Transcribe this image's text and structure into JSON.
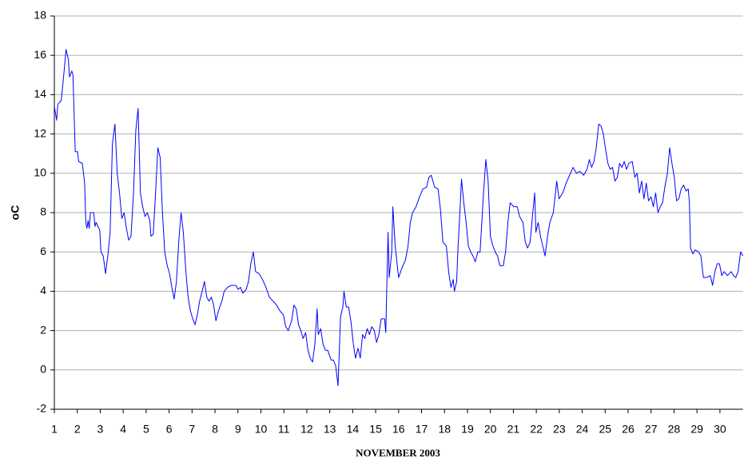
{
  "chart_data": {
    "type": "line",
    "xlabel": "NOVEMBER 2003",
    "ylabel": "oC",
    "color": "#0000ff",
    "grid": true,
    "xlim": [
      1,
      31
    ],
    "ylim": [
      -2,
      18
    ],
    "xticks": [
      1,
      2,
      3,
      4,
      5,
      6,
      7,
      8,
      9,
      10,
      11,
      12,
      13,
      14,
      15,
      16,
      17,
      18,
      19,
      20,
      21,
      22,
      23,
      24,
      25,
      26,
      27,
      28,
      29,
      30
    ],
    "yticks": [
      -2,
      0,
      2,
      4,
      6,
      8,
      10,
      12,
      14,
      16,
      18
    ],
    "x": [
      1,
      1.1,
      1.15,
      1.3,
      1.41,
      1.51,
      1.61,
      1.66,
      1.76,
      1.81,
      1.91,
      2.01,
      2.06,
      2.22,
      2.32,
      2.37,
      2.42,
      2.47,
      2.52,
      2.57,
      2.72,
      2.77,
      2.82,
      2.98,
      3.03,
      3.13,
      3.23,
      3.33,
      3.43,
      3.53,
      3.64,
      3.74,
      3.84,
      3.94,
      4.04,
      4.14,
      4.24,
      4.34,
      4.45,
      4.55,
      4.65,
      4.75,
      4.85,
      4.95,
      5.05,
      5.16,
      5.21,
      5.31,
      5.41,
      5.51,
      5.61,
      5.71,
      5.81,
      5.92,
      6.02,
      6.12,
      6.22,
      6.32,
      6.42,
      6.52,
      6.62,
      6.73,
      6.83,
      6.93,
      7.03,
      7.13,
      7.23,
      7.33,
      7.44,
      7.54,
      7.64,
      7.74,
      7.84,
      7.94,
      8.04,
      8.15,
      8.3,
      8.4,
      8.55,
      8.7,
      8.91,
      9.01,
      9.11,
      9.21,
      9.36,
      9.46,
      9.56,
      9.67,
      9.77,
      9.92,
      10.07,
      10.22,
      10.37,
      10.53,
      10.68,
      10.83,
      10.98,
      11.08,
      11.19,
      11.34,
      11.44,
      11.54,
      11.64,
      11.74,
      11.84,
      11.95,
      12.05,
      12.15,
      12.25,
      12.35,
      12.45,
      12.5,
      12.6,
      12.71,
      12.81,
      12.91,
      13.06,
      13.16,
      13.26,
      13.36,
      13.47,
      13.57,
      13.62,
      13.72,
      13.82,
      13.92,
      14.02,
      14.12,
      14.23,
      14.33,
      14.43,
      14.53,
      14.63,
      14.73,
      14.83,
      14.94,
      15.04,
      15.14,
      15.24,
      15.39,
      15.44,
      15.54,
      15.59,
      15.7,
      15.75,
      15.85,
      16.0,
      16.15,
      16.3,
      16.41,
      16.51,
      16.61,
      16.76,
      16.91,
      17.06,
      17.22,
      17.32,
      17.42,
      17.57,
      17.72,
      17.82,
      17.93,
      18.08,
      18.18,
      18.28,
      18.38,
      18.43,
      18.53,
      18.58,
      18.69,
      18.74,
      18.84,
      18.94,
      19.04,
      19.14,
      19.24,
      19.34,
      19.45,
      19.55,
      19.7,
      19.8,
      19.9,
      20.0,
      20.11,
      20.21,
      20.31,
      20.41,
      20.56,
      20.66,
      20.76,
      20.86,
      21.02,
      21.17,
      21.27,
      21.42,
      21.52,
      21.62,
      21.73,
      21.83,
      21.93,
      21.98,
      22.08,
      22.18,
      22.28,
      22.38,
      22.49,
      22.59,
      22.74,
      22.89,
      22.99,
      23.15,
      23.3,
      23.45,
      23.6,
      23.75,
      23.9,
      24.06,
      24.21,
      24.31,
      24.41,
      24.51,
      24.61,
      24.72,
      24.82,
      24.92,
      25.02,
      25.12,
      25.22,
      25.32,
      25.43,
      25.53,
      25.63,
      25.73,
      25.83,
      25.93,
      26.03,
      26.18,
      26.29,
      26.39,
      26.49,
      26.59,
      26.69,
      26.79,
      26.89,
      27.0,
      27.1,
      27.2,
      27.3,
      27.4,
      27.5,
      27.6,
      27.71,
      27.81,
      27.91,
      28.01,
      28.11,
      28.21,
      28.31,
      28.42,
      28.52,
      28.62,
      28.67,
      28.72,
      28.82,
      28.92,
      29.07,
      29.17,
      29.28,
      29.43,
      29.58,
      29.68,
      29.78,
      29.88,
      29.98,
      30.08,
      30.18,
      30.33,
      30.49,
      30.59,
      30.69,
      30.79,
      30.9,
      31.0
    ],
    "values": [
      13.4,
      12.7,
      13.5,
      13.7,
      15,
      16.3,
      15.8,
      14.9,
      15.2,
      15,
      11.1,
      11.1,
      10.6,
      10.5,
      9.5,
      7.5,
      7.2,
      7.6,
      7.2,
      8,
      8,
      7.3,
      7.5,
      7.1,
      6,
      5.8,
      4.9,
      5.8,
      7,
      11.5,
      12.5,
      10,
      9,
      7.7,
      8,
      7.2,
      6.6,
      6.8,
      9,
      12.2,
      13.3,
      9,
      8.3,
      7.8,
      8,
      7.6,
      6.8,
      6.9,
      9,
      11.3,
      10.8,
      8,
      6,
      5.3,
      4.9,
      4.2,
      3.6,
      4.5,
      6.5,
      8,
      7,
      5,
      3.7,
      3,
      2.6,
      2.3,
      2.8,
      3.5,
      4,
      4.5,
      3.7,
      3.5,
      3.7,
      3.3,
      2.5,
      3,
      3.5,
      4,
      4.2,
      4.3,
      4.3,
      4.1,
      4.2,
      3.9,
      4.1,
      4.5,
      5.4,
      6,
      5,
      4.9,
      4.6,
      4.2,
      3.7,
      3.5,
      3.3,
      3,
      2.8,
      2.2,
      2,
      2.5,
      3.3,
      3.1,
      2.3,
      2,
      1.6,
      1.9,
      1,
      0.6,
      0.4,
      1.3,
      3.1,
      1.8,
      2.1,
      1.3,
      1,
      1,
      0.5,
      0.5,
      0.2,
      -0.8,
      2.7,
      3.2,
      4,
      3.2,
      3.2,
      2.5,
      1.4,
      0.6,
      1.1,
      0.6,
      1.8,
      1.6,
      2.1,
      1.8,
      2.2,
      2,
      1.4,
      1.8,
      2.6,
      2.6,
      1.9,
      7,
      4.7,
      6,
      8.3,
      6.3,
      4.7,
      5.2,
      5.6,
      6.3,
      7.5,
      8,
      8.3,
      8.8,
      9.2,
      9.3,
      9.8,
      9.9,
      9.3,
      9.2,
      8.2,
      6.5,
      6.3,
      5,
      4.2,
      4.6,
      4,
      4.5,
      6,
      8.5,
      9.7,
      8.5,
      7.5,
      6.3,
      6,
      5.8,
      5.5,
      6,
      6,
      9,
      10.7,
      9.6,
      6.8,
      6.3,
      6,
      5.8,
      5.3,
      5.3,
      6,
      7.5,
      8.5,
      8.3,
      8.3,
      7.8,
      7.5,
      6.5,
      6.2,
      6.5,
      7.8,
      9,
      7,
      7.5,
      6.8,
      6.3,
      5.8,
      6.8,
      7.5,
      8,
      9.6,
      8.7,
      9,
      9.5,
      9.9,
      10.3,
      10,
      10.1,
      9.9,
      10.2,
      10.7,
      10.3,
      10.6,
      11.3,
      12.5,
      12.4,
      12,
      11.2,
      10.5,
      10.2,
      10.3,
      9.6,
      9.8,
      10.5,
      10.3,
      10.6,
      10.2,
      10.5,
      10.6,
      9.8,
      10,
      9,
      9.6,
      8.7,
      9.5,
      8.6,
      8.8,
      8.3,
      9,
      8,
      8.3,
      8.5,
      9.3,
      10,
      11.3,
      10.5,
      9.8,
      8.6,
      8.7,
      9.2,
      9.4,
      9.1,
      9.2,
      8.5,
      6.2,
      5.9,
      6.1,
      6,
      5.8,
      4.7,
      4.7,
      4.8,
      4.3,
      5,
      5.4,
      5.4,
      4.8,
      5,
      4.8,
      5,
      4.8,
      4.7,
      5,
      6,
      5.8
    ]
  }
}
